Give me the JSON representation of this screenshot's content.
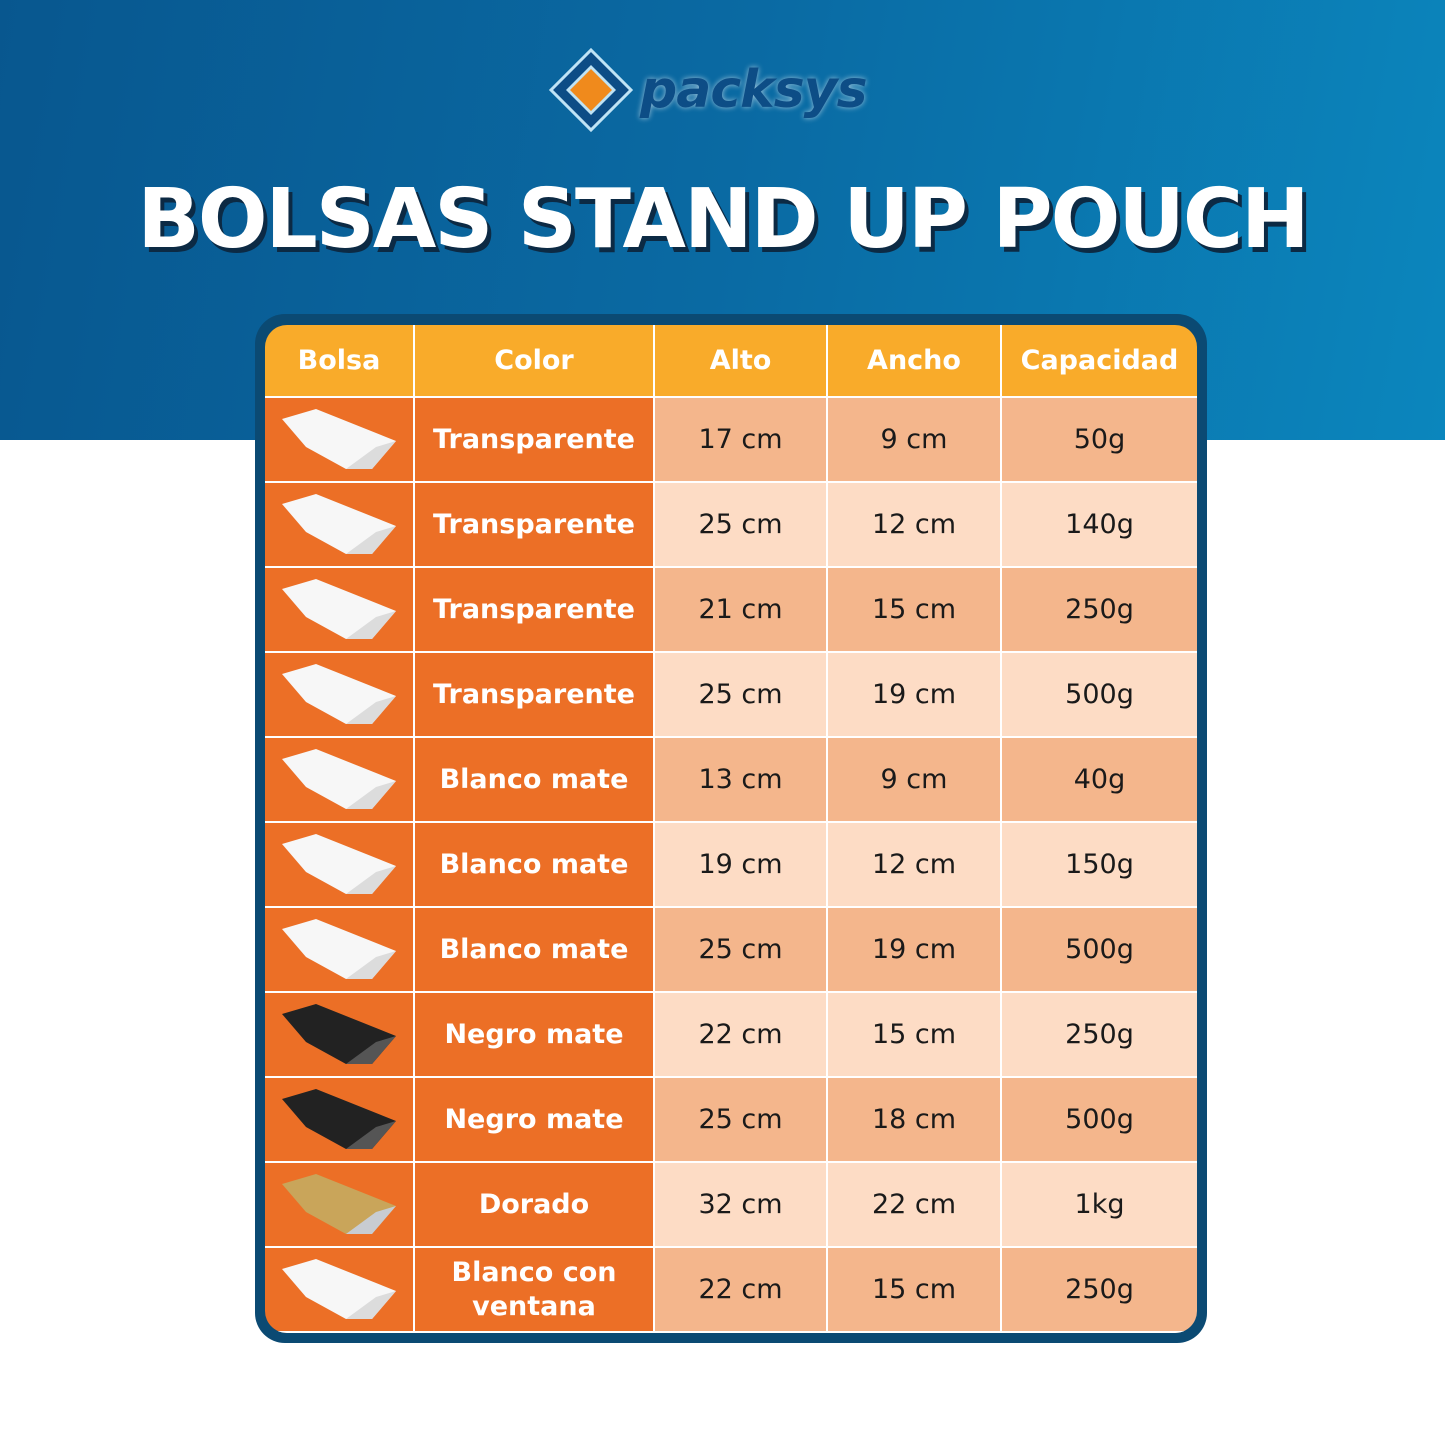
{
  "brand": {
    "name": "packsys",
    "colors": {
      "blue": "#0d4d86",
      "orange": "#f08a1c"
    }
  },
  "title": "BOLSAS STAND UP POUCH",
  "table": {
    "headers": [
      "Bolsa",
      "Color",
      "Alto",
      "Ancho",
      "Capacidad"
    ],
    "rows": [
      {
        "bag": "white-pouch",
        "color": "Transparente",
        "alto": "17 cm",
        "ancho": "9 cm",
        "capacidad": "50g"
      },
      {
        "bag": "white-pouch",
        "color": "Transparente",
        "alto": "25 cm",
        "ancho": "12 cm",
        "capacidad": "140g"
      },
      {
        "bag": "white-pouch",
        "color": "Transparente",
        "alto": "21 cm",
        "ancho": "15 cm",
        "capacidad": "250g"
      },
      {
        "bag": "white-pouch",
        "color": "Transparente",
        "alto": "25 cm",
        "ancho": "19 cm",
        "capacidad": "500g"
      },
      {
        "bag": "white-pouch",
        "color": "Blanco mate",
        "alto": "13 cm",
        "ancho": "9 cm",
        "capacidad": "40g"
      },
      {
        "bag": "white-pouch",
        "color": "Blanco mate",
        "alto": "19 cm",
        "ancho": "12 cm",
        "capacidad": "150g"
      },
      {
        "bag": "white-pouch",
        "color": "Blanco mate",
        "alto": "25 cm",
        "ancho": "19 cm",
        "capacidad": "500g"
      },
      {
        "bag": "black-pouch",
        "color": "Negro mate",
        "alto": "22 cm",
        "ancho": "15 cm",
        "capacidad": "250g"
      },
      {
        "bag": "black-pouch",
        "color": "Negro mate",
        "alto": "25 cm",
        "ancho": "18 cm",
        "capacidad": "500g"
      },
      {
        "bag": "gold-pouch",
        "color": "Dorado",
        "alto": "32 cm",
        "ancho": "22 cm",
        "capacidad": "1kg"
      },
      {
        "bag": "white-pouch",
        "color": "Blanco con ventana",
        "alto": "22 cm",
        "ancho": "15 cm",
        "capacidad": "250g"
      }
    ]
  },
  "colors": {
    "header": "#f9ab2a",
    "orange": "#ec6f26",
    "row_dark": "#f4b68c",
    "row_light": "#fddcc5",
    "frame": "#0b4a73"
  }
}
